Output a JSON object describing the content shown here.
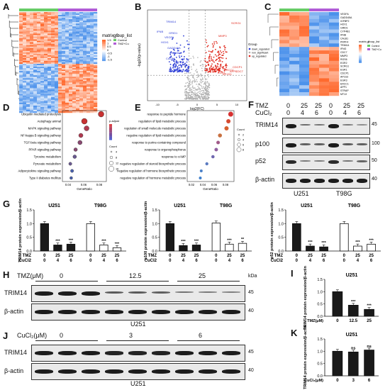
{
  "panels": {
    "A": "A",
    "B": "B",
    "C": "C",
    "D": "D",
    "E": "E",
    "F": "F",
    "G": "G",
    "H": "H",
    "I": "I",
    "J": "J",
    "K": "K"
  },
  "heatmapA": {
    "legend_title": "matrix_0",
    "legend_ticks": [
      "1.5",
      "1",
      "0.5",
      "0",
      "-0.5",
      "-1",
      "-1.5"
    ],
    "group_title": "group_list",
    "groups": [
      "Control",
      "TMZ+Cu"
    ]
  },
  "volcano": {
    "xlabel": "log2(FC)",
    "ylabel": "-log10(p-value)",
    "legend_title": "Group",
    "legend_items": [
      "down_regulated",
      "non_significant",
      "up_regulated"
    ],
    "down_genes": [
      "TRIM14",
      "IFNB",
      "GRID1",
      "VEGFA",
      "HOX1",
      "GADD45A",
      "CYP4B1",
      "CALB1",
      "PRPF4"
    ],
    "up_genes": [
      "SCRG1",
      "MMP3",
      "EGR2",
      "RGS6",
      "EGR1",
      "CDCP1",
      "ERCC1",
      "APP1",
      "AP1S3",
      "CDC7"
    ],
    "xticks": [
      "-10",
      "-5",
      "0",
      "5",
      "10"
    ]
  },
  "heatmapC": {
    "genes": [
      "VEGFA",
      "GADD45A",
      "IGFBP2",
      "HOX1",
      "GRID1",
      "CYP4B1",
      "IFNB",
      "CALB1",
      "PRPF4",
      "TRIM14",
      "IFNG",
      "CDC7",
      "MMP3",
      "RGS6",
      "EGR2",
      "SCRG1",
      "EGR1",
      "CDCP1",
      "AP1S3",
      "EGR3",
      "ERCC1",
      "APP1",
      "STRAP",
      "MT1X"
    ],
    "legend_title": "matrix_0",
    "group_title": "group_list",
    "groups": [
      "Control",
      "TMZ+Cu"
    ]
  },
  "kegg": {
    "terms": [
      "Ubiquitin mediated proteolysis",
      "Autophagy animal",
      "MAPK signaling pathway",
      "NF-kappa B signaling pathway",
      "TGF-beta signaling pathway",
      "PPAR signaling pathway",
      "Tyrosine metabolism",
      "Pyruvate metabolism",
      "Adipocytokine signaling pathway",
      "Type II diabetes mellitus"
    ],
    "xlabel": "GeneRatio",
    "xticks": [
      "0.04",
      "0.06",
      "0.08"
    ],
    "padj_title": "p.adjust",
    "count_title": "Count",
    "count_ticks": [
      "4",
      "8",
      "12",
      "16"
    ]
  },
  "go": {
    "terms": [
      "response to peptide hormone",
      "regulation of lipid metabolic process",
      "regulation of small molecule metabolic process",
      "negative regulation of lipid metabolic process",
      "response to purine-containing compound",
      "response to organophosphorus",
      "response to cAMP",
      "negative regulation of steroid biosynthetic process",
      "negative regulation of hormone biosynthetic process",
      "negative regulation of hormone metabolic process"
    ],
    "xlabel": "GeneRatio",
    "xticks": [
      "0.02",
      "0.04",
      "0.06",
      "0.08"
    ],
    "count_title": "Count",
    "count_ticks": [
      "2",
      "4",
      "6",
      "8"
    ]
  },
  "blotF": {
    "tmz_label": "TMZ",
    "cu_label": "CuCl₂",
    "tmz": [
      "0",
      "25",
      "25",
      "0",
      "25",
      "25"
    ],
    "cu": [
      "0",
      "4",
      "6",
      "0",
      "4",
      "6"
    ],
    "rows": [
      "TRIM14",
      "p100",
      "p52",
      "β-actin"
    ],
    "kda": [
      "45",
      "100",
      "50",
      "40"
    ],
    "cells": [
      "U251",
      "T98G"
    ],
    "kda_unit": "kDa"
  },
  "chart_data": [
    {
      "type": "bar",
      "id": "G1",
      "ylabel": "TRIM14 protein expression/β-actin",
      "groups": [
        "U251",
        "T98G"
      ],
      "tmz": [
        "0",
        "25",
        "25",
        "0",
        "25",
        "25"
      ],
      "cucl2": [
        "0",
        "4",
        "6",
        "0",
        "4",
        "6"
      ],
      "row_labels": [
        "TMZ",
        "CuCl2"
      ],
      "values": [
        1.0,
        0.22,
        0.25,
        1.0,
        0.22,
        0.12
      ],
      "sig": [
        "",
        "***",
        "***",
        "",
        "***",
        "***"
      ],
      "ylim": [
        0,
        1.5
      ],
      "yticks": [
        "0.0",
        "0.5",
        "1.0",
        "1.5"
      ]
    },
    {
      "type": "bar",
      "id": "G2",
      "ylabel": "p100 protein expression/β-actin",
      "groups": [
        "U251",
        "T98G"
      ],
      "tmz": [
        "0",
        "25",
        "25",
        "0",
        "25",
        "25"
      ],
      "cucl2": [
        "0",
        "4",
        "6",
        "0",
        "4",
        "6"
      ],
      "row_labels": [
        "TMZ",
        "CuCl2"
      ],
      "values": [
        1.0,
        0.2,
        0.22,
        1.02,
        0.25,
        0.28
      ],
      "sig": [
        "",
        "***",
        "***",
        "",
        "***",
        "**"
      ],
      "ylim": [
        0,
        1.5
      ],
      "yticks": [
        "0.0",
        "0.5",
        "1.0",
        "1.5"
      ]
    },
    {
      "type": "bar",
      "id": "G3",
      "ylabel": "p52 protein expression/β-actin",
      "groups": [
        "U251",
        "T98G"
      ],
      "tmz": [
        "0",
        "25",
        "25",
        "0",
        "25",
        "25"
      ],
      "cucl2": [
        "0",
        "4",
        "6",
        "0",
        "4",
        "6"
      ],
      "row_labels": [
        "TMZ",
        "CuCl2"
      ],
      "values": [
        1.0,
        0.18,
        0.15,
        1.0,
        0.18,
        0.25
      ],
      "sig": [
        "",
        "***",
        "***",
        "",
        "***",
        "***"
      ],
      "ylim": [
        0,
        1.5
      ],
      "yticks": [
        "0.0",
        "0.5",
        "1.0",
        "1.5"
      ]
    },
    {
      "type": "bar",
      "id": "I",
      "title": "U251",
      "ylabel": "TRIM14 protein expression/β-actin",
      "xlabel": "TMZ(μM)",
      "categories": [
        "0",
        "12.5",
        "25"
      ],
      "values": [
        1.0,
        0.45,
        0.28
      ],
      "sig": [
        "",
        "***",
        "***"
      ],
      "ylim": [
        0,
        1.5
      ],
      "yticks": [
        "0.0",
        "0.5",
        "1.0",
        "1.5"
      ]
    },
    {
      "type": "bar",
      "id": "K",
      "title": "U251",
      "ylabel": "TRIM14 protein expression/β-actin",
      "xlabel": "CuCl₂(μM)",
      "categories": [
        "0",
        "3",
        "6"
      ],
      "values": [
        1.0,
        0.97,
        1.05
      ],
      "sig": [
        "",
        "ns",
        "ns"
      ],
      "ylim": [
        0,
        1.5
      ],
      "yticks": [
        "0.0",
        "0.5",
        "1.0",
        "1.5"
      ]
    }
  ],
  "blotH": {
    "header": "TMZ(μM)",
    "doses": [
      "0",
      "12.5",
      "25"
    ],
    "rows": [
      "TRIM14",
      "β-actin"
    ],
    "kda": [
      "45",
      "40"
    ],
    "kda_unit": "kDa",
    "cell": "U251"
  },
  "blotJ": {
    "header": "CuCl₂(μM)",
    "doses": [
      "0",
      "3",
      "6"
    ],
    "rows": [
      "TRIM14",
      "β-actin"
    ],
    "kda": [
      "45",
      "40"
    ],
    "cell": "U251"
  },
  "colors": {
    "red": "#d7301f",
    "blue": "#3b4cc0",
    "control": "#66cc66",
    "treat": "#b05cd6",
    "black_bar": "#1a1a1a",
    "white_bar": "#ffffff"
  }
}
